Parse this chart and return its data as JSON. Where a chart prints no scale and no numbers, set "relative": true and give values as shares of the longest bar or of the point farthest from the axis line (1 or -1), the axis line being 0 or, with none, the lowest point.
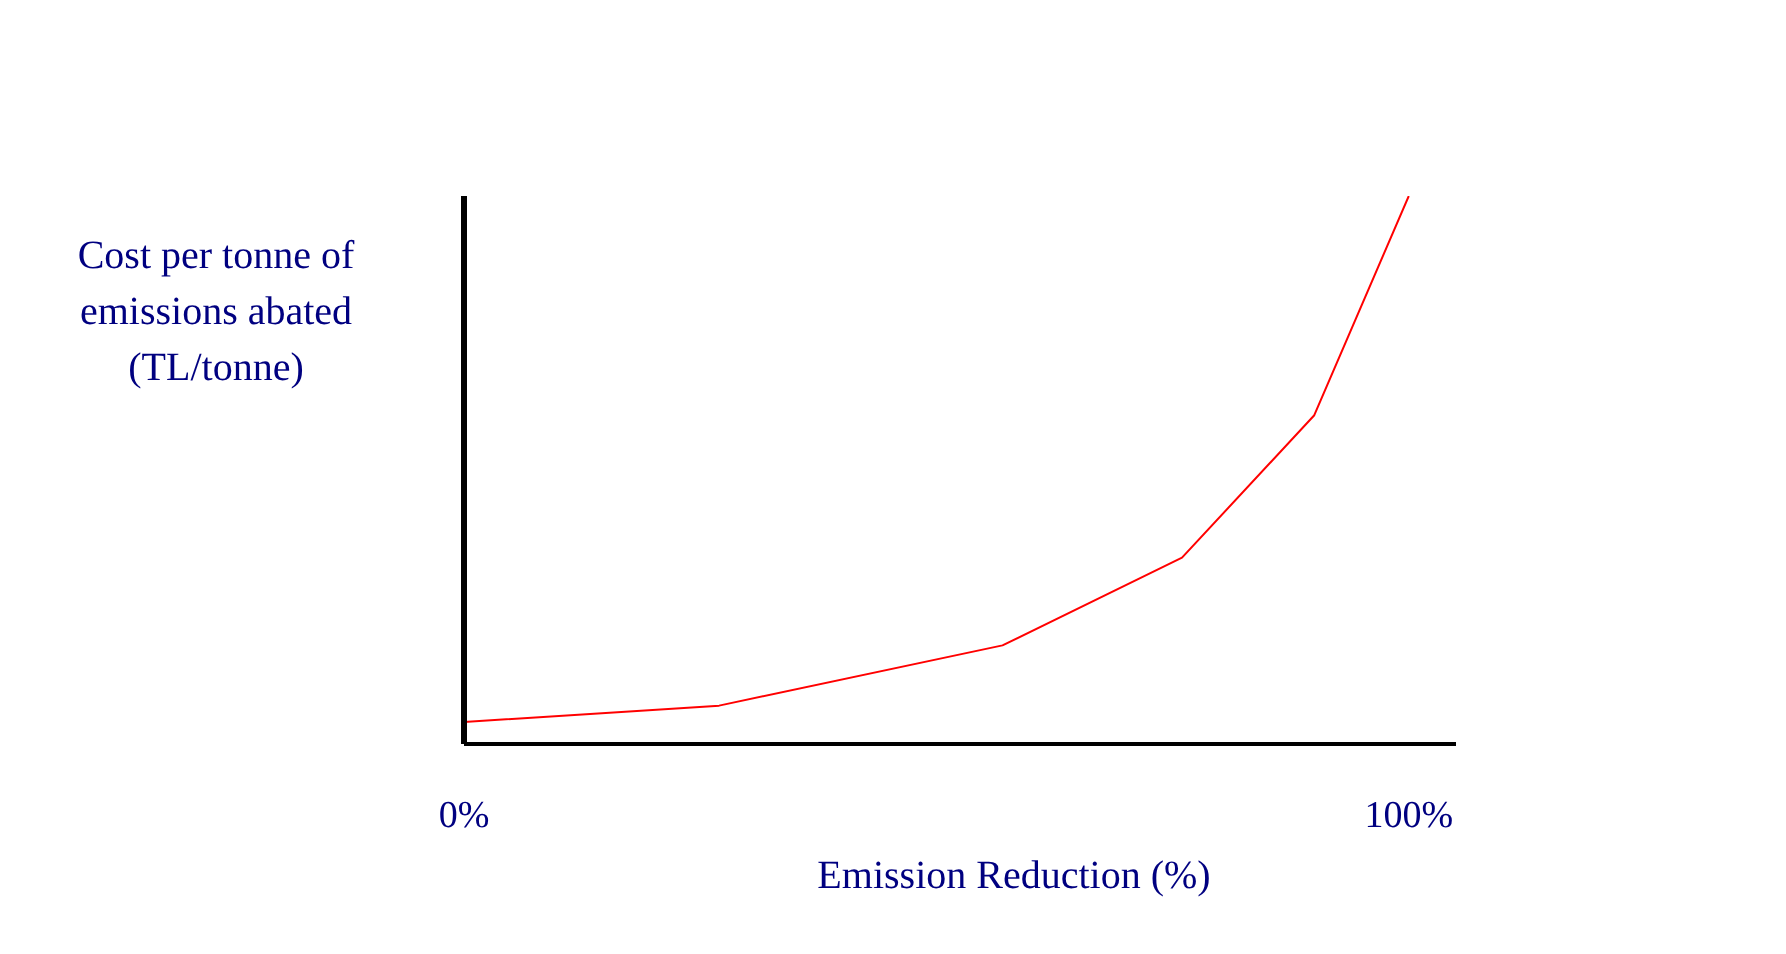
{
  "chart_data": {
    "type": "line",
    "xlabel": "Emission Reduction (%)",
    "ylabel": "Cost per tonne of emissions abated (TL/tonne)",
    "x": [
      0,
      27,
      57,
      76,
      90,
      100
    ],
    "series": [
      {
        "color": "#ff0000",
        "values": [
          0.04,
          0.07,
          0.18,
          0.34,
          0.6,
          1
        ]
      }
    ],
    "relative": true,
    "xlim": [
      0,
      105
    ],
    "xticks": [
      {
        "value": 0,
        "label": "0%"
      },
      {
        "value": 100,
        "label": "100%"
      }
    ],
    "grid": false,
    "marker": "none",
    "line_style": "solid"
  }
}
